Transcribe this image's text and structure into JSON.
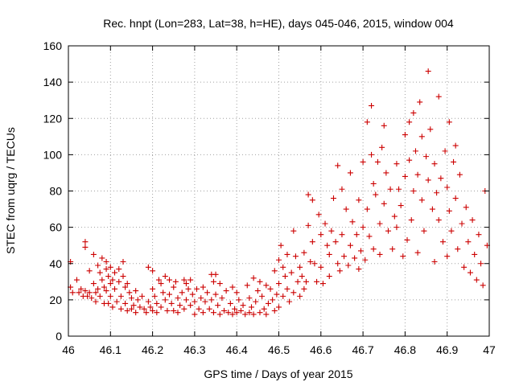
{
  "chart_data": {
    "type": "scatter",
    "title": "Rec. hnpt (Lon=283, Lat=38, h=HE), days 045-046, 2015, window 004",
    "xlabel": "GPS time / Days of year 2015",
    "ylabel": "STEC from uqrg / TECUs",
    "xlim": [
      46,
      47
    ],
    "ylim": [
      0,
      160
    ],
    "x_ticks": [
      46,
      46.1,
      46.2,
      46.3,
      46.4,
      46.5,
      46.6,
      46.7,
      46.8,
      46.9,
      47
    ],
    "x_tick_labels": [
      "46",
      "46.1",
      "46.2",
      "46.3",
      "46.4",
      "46.5",
      "46.6",
      "46.7",
      "46.8",
      "46.9",
      "47"
    ],
    "y_ticks": [
      0,
      20,
      40,
      60,
      80,
      100,
      120,
      140,
      160
    ],
    "y_tick_labels": [
      "0",
      "20",
      "40",
      "60",
      "80",
      "100",
      "120",
      "140",
      "160"
    ],
    "grid": true,
    "marker": "+",
    "series": [
      {
        "name": "STEC",
        "color": "#cc0000",
        "points": [
          [
            46.005,
            41
          ],
          [
            46.005,
            27
          ],
          [
            46.01,
            24
          ],
          [
            46.02,
            31
          ],
          [
            46.025,
            24
          ],
          [
            46.03,
            26
          ],
          [
            46.035,
            22
          ],
          [
            46.04,
            52
          ],
          [
            46.04,
            49
          ],
          [
            46.04,
            25
          ],
          [
            46.045,
            22
          ],
          [
            46.05,
            36
          ],
          [
            46.05,
            24
          ],
          [
            46.055,
            21
          ],
          [
            46.06,
            45
          ],
          [
            46.06,
            29
          ],
          [
            46.065,
            24
          ],
          [
            46.065,
            19
          ],
          [
            46.07,
            39
          ],
          [
            46.07,
            26
          ],
          [
            46.075,
            35
          ],
          [
            46.075,
            22
          ],
          [
            46.08,
            43
          ],
          [
            46.08,
            31
          ],
          [
            46.085,
            27
          ],
          [
            46.085,
            18
          ],
          [
            46.09,
            41
          ],
          [
            46.09,
            37
          ],
          [
            46.09,
            25
          ],
          [
            46.095,
            33
          ],
          [
            46.095,
            18
          ],
          [
            46.1,
            38
          ],
          [
            46.1,
            29
          ],
          [
            46.1,
            22
          ],
          [
            46.105,
            31
          ],
          [
            46.105,
            16
          ],
          [
            46.11,
            35
          ],
          [
            46.11,
            26
          ],
          [
            46.115,
            19
          ],
          [
            46.12,
            37
          ],
          [
            46.12,
            30
          ],
          [
            46.125,
            22
          ],
          [
            46.125,
            15
          ],
          [
            46.13,
            41
          ],
          [
            46.13,
            33
          ],
          [
            46.135,
            27
          ],
          [
            46.135,
            18
          ],
          [
            46.14,
            29
          ],
          [
            46.14,
            14
          ],
          [
            46.145,
            24
          ],
          [
            46.15,
            21
          ],
          [
            46.15,
            15
          ],
          [
            46.155,
            17
          ],
          [
            46.16,
            25
          ],
          [
            46.16,
            13
          ],
          [
            46.165,
            20
          ],
          [
            46.17,
            16
          ],
          [
            46.175,
            22
          ],
          [
            46.18,
            15
          ],
          [
            46.185,
            13
          ],
          [
            46.19,
            38
          ],
          [
            46.19,
            19
          ],
          [
            46.195,
            16
          ],
          [
            46.2,
            36
          ],
          [
            46.2,
            26
          ],
          [
            46.2,
            14
          ],
          [
            46.205,
            22
          ],
          [
            46.21,
            18
          ],
          [
            46.21,
            13
          ],
          [
            46.215,
            31
          ],
          [
            46.22,
            29
          ],
          [
            46.22,
            16
          ],
          [
            46.225,
            24
          ],
          [
            46.23,
            33
          ],
          [
            46.23,
            20
          ],
          [
            46.235,
            14
          ],
          [
            46.24,
            31
          ],
          [
            46.24,
            23
          ],
          [
            46.245,
            18
          ],
          [
            46.25,
            27
          ],
          [
            46.25,
            14
          ],
          [
            46.255,
            30
          ],
          [
            46.26,
            21
          ],
          [
            46.26,
            13
          ],
          [
            46.265,
            17
          ],
          [
            46.27,
            24
          ],
          [
            46.275,
            31
          ],
          [
            46.275,
            15
          ],
          [
            46.28,
            29
          ],
          [
            46.28,
            20
          ],
          [
            46.285,
            26
          ],
          [
            46.29,
            31
          ],
          [
            46.29,
            17
          ],
          [
            46.295,
            23
          ],
          [
            46.3,
            19
          ],
          [
            46.3,
            12
          ],
          [
            46.305,
            26
          ],
          [
            46.31,
            15
          ],
          [
            46.315,
            21
          ],
          [
            46.32,
            27
          ],
          [
            46.32,
            13
          ],
          [
            46.325,
            19
          ],
          [
            46.33,
            24
          ],
          [
            46.335,
            15
          ],
          [
            46.34,
            34
          ],
          [
            46.34,
            20
          ],
          [
            46.345,
            30
          ],
          [
            46.345,
            13
          ],
          [
            46.35,
            34
          ],
          [
            46.35,
            23
          ],
          [
            46.355,
            17
          ],
          [
            46.36,
            29
          ],
          [
            46.36,
            12
          ],
          [
            46.365,
            21
          ],
          [
            46.37,
            14
          ],
          [
            46.375,
            25
          ],
          [
            46.38,
            13
          ],
          [
            46.385,
            18
          ],
          [
            46.39,
            27
          ],
          [
            46.39,
            12
          ],
          [
            46.395,
            15
          ],
          [
            46.4,
            24
          ],
          [
            46.4,
            13
          ],
          [
            46.405,
            20
          ],
          [
            46.41,
            14
          ],
          [
            46.415,
            17
          ],
          [
            46.42,
            12
          ],
          [
            46.425,
            28
          ],
          [
            46.43,
            21
          ],
          [
            46.43,
            13
          ],
          [
            46.435,
            16
          ],
          [
            46.44,
            32
          ],
          [
            46.44,
            12
          ],
          [
            46.445,
            19
          ],
          [
            46.45,
            25
          ],
          [
            46.455,
            30
          ],
          [
            46.455,
            13
          ],
          [
            46.46,
            22
          ],
          [
            46.465,
            15
          ],
          [
            46.47,
            28
          ],
          [
            46.47,
            12
          ],
          [
            46.475,
            18
          ],
          [
            46.48,
            26
          ],
          [
            46.485,
            20
          ],
          [
            46.49,
            36
          ],
          [
            46.49,
            14
          ],
          [
            46.495,
            23
          ],
          [
            46.5,
            42
          ],
          [
            46.5,
            29
          ],
          [
            46.5,
            16
          ],
          [
            46.505,
            50
          ],
          [
            46.51,
            38
          ],
          [
            46.51,
            22
          ],
          [
            46.515,
            33
          ],
          [
            46.52,
            45
          ],
          [
            46.52,
            26
          ],
          [
            46.525,
            19
          ],
          [
            46.53,
            35
          ],
          [
            46.535,
            58
          ],
          [
            46.535,
            24
          ],
          [
            46.54,
            44
          ],
          [
            46.545,
            30
          ],
          [
            46.55,
            38
          ],
          [
            46.55,
            22
          ],
          [
            46.555,
            33
          ],
          [
            46.56,
            46
          ],
          [
            46.56,
            26
          ],
          [
            46.565,
            30
          ],
          [
            46.57,
            78
          ],
          [
            46.57,
            61
          ],
          [
            46.575,
            41
          ],
          [
            46.58,
            75
          ],
          [
            46.58,
            52
          ],
          [
            46.585,
            40
          ],
          [
            46.59,
            30
          ],
          [
            46.595,
            67
          ],
          [
            46.6,
            56
          ],
          [
            46.6,
            38
          ],
          [
            46.605,
            29
          ],
          [
            46.61,
            62
          ],
          [
            46.615,
            50
          ],
          [
            46.62,
            45
          ],
          [
            46.62,
            33
          ],
          [
            46.625,
            58
          ],
          [
            46.63,
            76
          ],
          [
            46.635,
            52
          ],
          [
            46.64,
            94
          ],
          [
            46.64,
            40
          ],
          [
            46.645,
            36
          ],
          [
            46.65,
            81
          ],
          [
            46.65,
            56
          ],
          [
            46.655,
            44
          ],
          [
            46.66,
            70
          ],
          [
            46.665,
            39
          ],
          [
            46.67,
            90
          ],
          [
            46.67,
            50
          ],
          [
            46.675,
            63
          ],
          [
            46.68,
            43
          ],
          [
            46.685,
            56
          ],
          [
            46.69,
            75
          ],
          [
            46.69,
            37
          ],
          [
            46.695,
            47
          ],
          [
            46.7,
            96
          ],
          [
            46.7,
            60
          ],
          [
            46.705,
            42
          ],
          [
            46.71,
            118
          ],
          [
            46.71,
            70
          ],
          [
            46.715,
            55
          ],
          [
            46.72,
            127
          ],
          [
            46.72,
            100
          ],
          [
            46.725,
            84
          ],
          [
            46.725,
            48
          ],
          [
            46.73,
            78
          ],
          [
            46.735,
            96
          ],
          [
            46.74,
            62
          ],
          [
            46.74,
            45
          ],
          [
            46.745,
            104
          ],
          [
            46.75,
            116
          ],
          [
            46.75,
            73
          ],
          [
            46.755,
            90
          ],
          [
            46.76,
            58
          ],
          [
            46.765,
            81
          ],
          [
            46.77,
            48
          ],
          [
            46.775,
            66
          ],
          [
            46.78,
            95
          ],
          [
            46.78,
            60
          ],
          [
            46.785,
            81
          ],
          [
            46.79,
            72
          ],
          [
            46.795,
            44
          ],
          [
            46.8,
            111
          ],
          [
            46.8,
            88
          ],
          [
            46.805,
            53
          ],
          [
            46.81,
            118
          ],
          [
            46.81,
            97
          ],
          [
            46.815,
            64
          ],
          [
            46.82,
            123
          ],
          [
            46.82,
            80
          ],
          [
            46.825,
            102
          ],
          [
            46.83,
            89
          ],
          [
            46.83,
            46
          ],
          [
            46.835,
            129
          ],
          [
            46.84,
            110
          ],
          [
            46.84,
            75
          ],
          [
            46.845,
            58
          ],
          [
            46.85,
            99
          ],
          [
            46.855,
            146
          ],
          [
            46.855,
            86
          ],
          [
            46.86,
            114
          ],
          [
            46.865,
            70
          ],
          [
            46.87,
            95
          ],
          [
            46.87,
            41
          ],
          [
            46.875,
            79
          ],
          [
            46.88,
            132
          ],
          [
            46.88,
            64
          ],
          [
            46.885,
            87
          ],
          [
            46.89,
            52
          ],
          [
            46.895,
            102
          ],
          [
            46.9,
            82
          ],
          [
            46.9,
            44
          ],
          [
            46.905,
            118
          ],
          [
            46.905,
            69
          ],
          [
            46.91,
            58
          ],
          [
            46.915,
            96
          ],
          [
            46.92,
            105
          ],
          [
            46.92,
            76
          ],
          [
            46.925,
            48
          ],
          [
            46.93,
            89
          ],
          [
            46.935,
            62
          ],
          [
            46.94,
            38
          ],
          [
            46.945,
            71
          ],
          [
            46.95,
            52
          ],
          [
            46.955,
            35
          ],
          [
            46.96,
            64
          ],
          [
            46.965,
            45
          ],
          [
            46.97,
            31
          ],
          [
            46.975,
            56
          ],
          [
            46.98,
            40
          ],
          [
            46.985,
            28
          ],
          [
            46.99,
            80
          ],
          [
            46.995,
            50
          ]
        ]
      }
    ]
  }
}
